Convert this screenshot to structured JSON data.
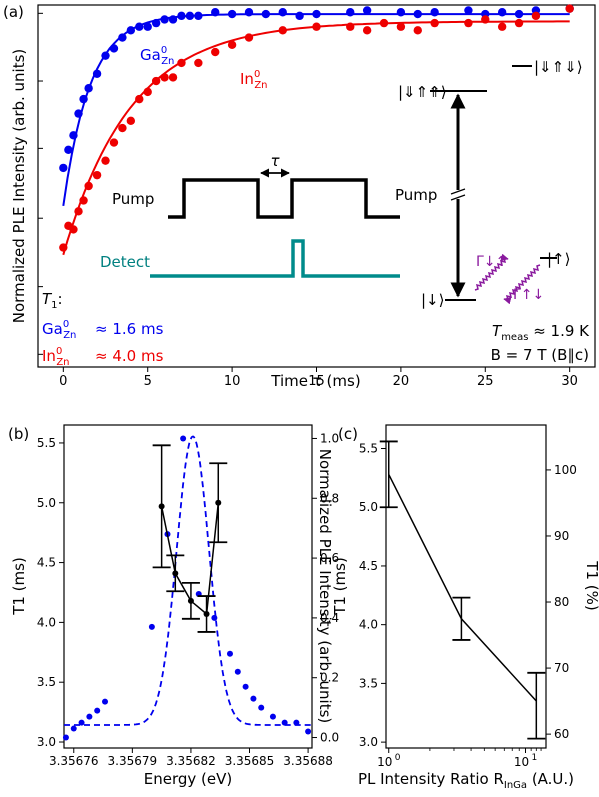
{
  "chart_data": [
    {
      "panel": "(a)",
      "type": "scatter",
      "xlabel": "Time τ (ms)",
      "ylabel": "Normalized PLE Intensity (arb. units)",
      "xlim": [
        -1.5,
        31.5
      ],
      "ylim": [
        0,
        1
      ],
      "xticks": [
        0,
        5,
        10,
        15,
        20,
        25,
        30
      ],
      "yticks": [
        0.035,
        0.222,
        0.411,
        0.604,
        0.79,
        0.977
      ],
      "grid": false,
      "series": [
        {
          "name": "Ga0Zn",
          "color": "#0000ee",
          "points": [
            [
              0,
              0.55
            ],
            [
              0.3,
              0.6
            ],
            [
              0.6,
              0.64
            ],
            [
              0.9,
              0.7
            ],
            [
              1.2,
              0.74
            ],
            [
              1.5,
              0.77
            ],
            [
              2,
              0.81
            ],
            [
              2.5,
              0.86
            ],
            [
              3,
              0.88
            ],
            [
              3.5,
              0.91
            ],
            [
              4,
              0.93
            ],
            [
              4.5,
              0.94
            ],
            [
              5,
              0.94
            ],
            [
              5.5,
              0.95
            ],
            [
              6,
              0.96
            ],
            [
              6.5,
              0.96
            ],
            [
              7,
              0.97
            ],
            [
              7.5,
              0.97
            ],
            [
              8,
              0.97
            ],
            [
              9,
              0.98
            ],
            [
              10,
              0.975
            ],
            [
              11,
              0.98
            ],
            [
              12,
              0.975
            ],
            [
              13,
              0.98
            ],
            [
              14,
              0.97
            ],
            [
              15,
              0.975
            ],
            [
              17,
              0.98
            ],
            [
              18,
              0.985
            ],
            [
              20,
              0.98
            ],
            [
              21,
              0.975
            ],
            [
              22,
              0.98
            ],
            [
              24,
              0.985
            ],
            [
              25,
              0.975
            ],
            [
              26,
              0.98
            ],
            [
              27,
              0.975
            ],
            [
              28,
              0.985
            ],
            [
              30,
              0.99
            ]
          ],
          "fit": {
            "a": 0.975,
            "b": 0.53,
            "tau": 1.6
          }
        },
        {
          "name": "In0Zn",
          "color": "#ee0000",
          "points": [
            [
              0,
              0.33
            ],
            [
              0.3,
              0.39
            ],
            [
              0.6,
              0.38
            ],
            [
              0.9,
              0.43
            ],
            [
              1.2,
              0.46
            ],
            [
              1.5,
              0.5
            ],
            [
              2,
              0.53
            ],
            [
              2.5,
              0.57
            ],
            [
              3,
              0.62
            ],
            [
              3.5,
              0.66
            ],
            [
              4,
              0.68
            ],
            [
              4.5,
              0.74
            ],
            [
              5,
              0.76
            ],
            [
              5.5,
              0.79
            ],
            [
              6,
              0.8
            ],
            [
              6.5,
              0.8
            ],
            [
              7,
              0.84
            ],
            [
              8,
              0.84
            ],
            [
              9,
              0.87
            ],
            [
              10,
              0.89
            ],
            [
              11,
              0.91
            ],
            [
              13,
              0.93
            ],
            [
              15,
              0.94
            ],
            [
              17,
              0.94
            ],
            [
              18,
              0.93
            ],
            [
              19,
              0.95
            ],
            [
              20,
              0.94
            ],
            [
              21,
              0.93
            ],
            [
              22,
              0.95
            ],
            [
              24,
              0.95
            ],
            [
              25,
              0.96
            ],
            [
              26,
              0.94
            ],
            [
              27,
              0.95
            ],
            [
              28,
              0.97
            ],
            [
              30,
              0.99
            ]
          ],
          "fit": {
            "a": 0.955,
            "b": 0.645,
            "tau": 4.0
          }
        }
      ],
      "annotations": {
        "panel_label": "(a)",
        "ga_label": "Ga",
        "ga_sup": "0",
        "ga_sub": "Zn",
        "in_label": "In",
        "in_sup": "0",
        "in_sub": "Zn",
        "pump": "Pump",
        "pump_right": "Pump",
        "detect": "Detect",
        "tau": "τ",
        "t1_header": "T",
        "t1_header_sub": "1",
        "t1_header_colon": ":",
        "ga_t1": "≈ 1.6 ms",
        "in_t1": "≈ 4.0 ms",
        "tmeas_T": "T",
        "tmeas_sub": "meas",
        "tmeas_val": " ≈ 1.9 K",
        "field": "B = 7 T (B∥c)",
        "gamma_down_up": "Γ↓↑",
        "gamma_up_down": "Γ↑↓",
        "ket_top_right": "|⇓⇑⇓⟩",
        "ket_top_left": "|⇓⇑⇑⟩",
        "ket_mid": "|↑⟩",
        "ket_bottom": "|↓⟩"
      }
    },
    {
      "panel": "(b)",
      "type": "line",
      "xlabel": "Energy (eV)",
      "ylabel_left": "T1 (ms)",
      "ylabel_right": "Normalized PLE Intensity (arb. units)",
      "xlim": [
        3.356755,
        3.356882
      ],
      "ylim_left": [
        2.95,
        5.65
      ],
      "ylim_right": [
        -0.035,
        1.045
      ],
      "xticks": [
        3.35676,
        3.35679,
        3.35682,
        3.35685,
        3.35688
      ],
      "xtick_labels": [
        "3.35676",
        "3.35679",
        "3.35682",
        "3.35685",
        "3.35688"
      ],
      "yticks_left": [
        3.0,
        3.5,
        4.0,
        4.5,
        5.0,
        5.5
      ],
      "yticks_right": [
        0.0,
        0.2,
        0.4,
        0.6,
        0.8,
        1.0
      ],
      "series": [
        {
          "name": "T1",
          "color": "#000000",
          "x": [
            3.356805,
            3.356812,
            3.35682,
            3.356828,
            3.356834
          ],
          "y": [
            4.97,
            4.41,
            4.18,
            4.07,
            5.0
          ],
          "err": [
            0.51,
            0.15,
            0.15,
            0.15,
            0.33
          ]
        },
        {
          "name": "PLE",
          "color": "#0000ee",
          "x": [
            3.356756,
            3.35676,
            3.356764,
            3.356768,
            3.356772,
            3.356776,
            3.3568,
            3.356808,
            3.356816,
            3.356824,
            3.356832,
            3.35684,
            3.356844,
            3.356848,
            3.356852,
            3.356856,
            3.356862,
            3.356868,
            3.356874,
            3.35688
          ],
          "y": [
            0.0,
            0.03,
            0.05,
            0.07,
            0.09,
            0.12,
            0.37,
            0.68,
            1.0,
            0.48,
            0.4,
            0.28,
            0.22,
            0.17,
            0.13,
            0.1,
            0.07,
            0.05,
            0.05,
            0.02
          ],
          "fit": {
            "center": 3.356821,
            "sigma": 8.3e-06,
            "amp": 0.965,
            "base": 0.042
          }
        }
      ],
      "panel_label": "(b)"
    },
    {
      "panel": "(c)",
      "type": "line",
      "xscale": "log",
      "xlabel": "PL Intensity Ratio R",
      "xlabel_sub": "InGa",
      "xlabel_unit": " (A.U.)",
      "ylabel_left": "T1 (ms)",
      "ylabel_right": "T1 (%)",
      "xlim_log10": [
        -0.02,
        1.15
      ],
      "ylim_left": [
        2.95,
        5.7
      ],
      "ylim_right": [
        57.9,
        106.8
      ],
      "yticks_left": [
        3.0,
        3.5,
        4.0,
        4.5,
        5.0,
        5.5
      ],
      "yticks_right": [
        60,
        70,
        80,
        90,
        100
      ],
      "xtick_labels": [
        "10",
        "10"
      ],
      "xtick_sups": [
        "0",
        "1"
      ],
      "series": [
        {
          "name": "T1",
          "color": "#000000",
          "x": [
            1.0,
            3.4,
            12.0
          ],
          "y": [
            5.28,
            4.05,
            3.35
          ],
          "err_up": [
            0.28,
            0.18,
            0.24
          ],
          "err_down": [
            0.28,
            0.18,
            0.32
          ]
        }
      ],
      "panel_label": "(c)"
    }
  ]
}
